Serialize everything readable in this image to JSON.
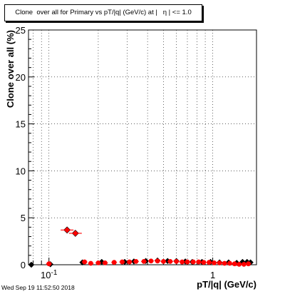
{
  "chart_data": {
    "type": "scatter",
    "title": "Clone  over all for Primary vs pT/|q| (GeV/c) at |   η | <= 1.0",
    "xlabel": "pT/|q| (GeV/c)",
    "ylabel": "Clone  over all (%)",
    "xscale": "log",
    "xlim": [
      0.075,
      1.85
    ],
    "ylim": [
      0,
      25
    ],
    "yticks": [
      0,
      5,
      10,
      15,
      20,
      25
    ],
    "xtick_labels": [
      {
        "value": 0.1,
        "label": "10^-1"
      },
      {
        "value": 1,
        "label": "1"
      }
    ],
    "grid": true,
    "series": [
      {
        "color": "#000000",
        "marker": "diamond",
        "x": [
          0.078,
          0.102,
          0.16,
          0.21,
          0.29,
          0.33,
          0.39,
          0.46,
          0.53,
          0.6,
          0.68,
          0.75,
          0.86,
          0.97,
          1.1,
          1.25,
          1.4,
          1.52,
          1.62,
          1.7
        ],
        "y": [
          0.0,
          0.05,
          0.25,
          0.3,
          0.3,
          0.35,
          0.4,
          0.45,
          0.4,
          0.4,
          0.35,
          0.3,
          0.3,
          0.3,
          0.25,
          0.25,
          0.2,
          0.3,
          0.3,
          0.25
        ]
      },
      {
        "color": "#ff0000",
        "marker": "circle",
        "x": [
          0.1,
          0.129,
          0.145,
          0.165,
          0.18,
          0.2,
          0.22,
          0.25,
          0.28,
          0.31,
          0.34,
          0.38,
          0.42,
          0.46,
          0.5,
          0.55,
          0.6,
          0.65,
          0.7,
          0.76,
          0.82,
          0.88,
          0.95,
          1.02,
          1.1,
          1.18,
          1.27,
          1.36,
          1.45,
          1.55,
          1.65
        ],
        "y": [
          0.1,
          3.7,
          3.35,
          0.3,
          0.15,
          0.2,
          0.2,
          0.25,
          0.3,
          0.3,
          0.35,
          0.35,
          0.4,
          0.4,
          0.35,
          0.35,
          0.35,
          0.3,
          0.3,
          0.3,
          0.3,
          0.25,
          0.25,
          0.2,
          0.2,
          0.15,
          0.15,
          0.1,
          0.05,
          0.05,
          0.1
        ]
      }
    ]
  },
  "datestamp": "Wed Sep 19 11:52:50 2018"
}
